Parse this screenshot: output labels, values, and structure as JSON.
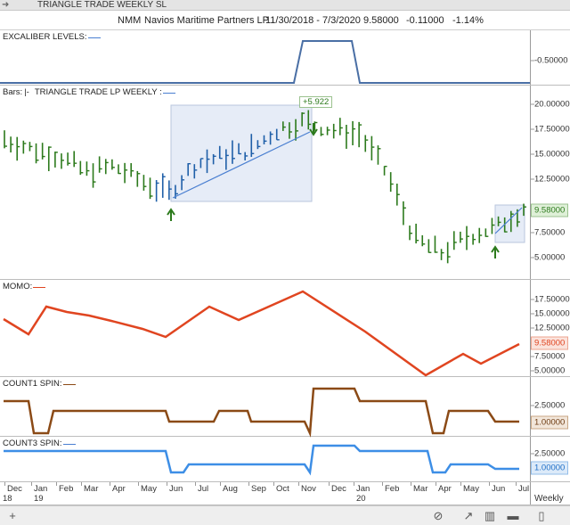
{
  "window": {
    "title": "TRIANGLE TRADE WEEKLY SL",
    "back_icon": "arrow-right-icon"
  },
  "info": {
    "symbol": "NMM",
    "name": "Navios Maritime Partners LP",
    "date_range": "11/30/2018 - 7/3/2020",
    "last": "9.58000",
    "change": "-0.11000",
    "pct_change": "-1.14%"
  },
  "panes": {
    "excaliber": {
      "label": "EXCALIBER LEVELS:",
      "ticks": [
        "-0.50000"
      ],
      "color": "#4a6fa5"
    },
    "bars": {
      "label_prefix": "Bars:",
      "label": "TRIANGLE TRADE LP WEEKLY :",
      "ticks": [
        "20.00000",
        "17.50000",
        "15.00000",
        "12.50000",
        "10.00000",
        "7.50000",
        "5.00000"
      ],
      "last_badge": "9.58000",
      "annotation": "+5.922",
      "colors": {
        "up": "#2c7a1c",
        "down": "#2c7a1c",
        "highlight": "#e9eef8",
        "trend": "#4a7fd1"
      }
    },
    "momo": {
      "label": "MOMO:",
      "ticks": [
        "17.50000",
        "15.00000",
        "12.50000",
        "10.00000",
        "7.50000",
        "5.00000"
      ],
      "last_badge": "9.58000",
      "color": "#e04520"
    },
    "count1": {
      "label": "COUNT1 SPIN:",
      "ticks": [
        "2.50000",
        "1.00000"
      ],
      "last_badge": "1.00000",
      "color": "#8b4a16"
    },
    "count3": {
      "label": "COUNT3 SPIN:",
      "ticks": [
        "2.50000",
        "1.00000"
      ],
      "last_badge": "1.00000",
      "color": "#3d8ee6"
    }
  },
  "time_axis": {
    "months": [
      "Dec",
      "Jan",
      "Feb",
      "Mar",
      "Apr",
      "May",
      "Jun",
      "Jul",
      "Aug",
      "Sep",
      "Oct",
      "Nov",
      "Dec",
      "Jan",
      "Feb",
      "Mar",
      "Apr",
      "May",
      "Jun",
      "Jul"
    ],
    "years": [
      "18",
      "19",
      "20"
    ],
    "period": "Weekly"
  },
  "toolbar": {
    "icons": [
      "add-icon",
      "zoom-icon",
      "line-chart-icon",
      "bar-chart-icon",
      "panel-icon",
      "page-icon"
    ]
  },
  "chart_data": [
    {
      "type": "ohlc",
      "title": "TRIANGLE TRADE LP WEEKLY",
      "ylim": [
        3.5,
        21
      ],
      "x": [
        "2018-12",
        "2019-01",
        "2019-02",
        "2019-03",
        "2019-04",
        "2019-05",
        "2019-06",
        "2019-07",
        "2019-08",
        "2019-09",
        "2019-10",
        "2019-11",
        "2019-12",
        "2020-01",
        "2020-02",
        "2020-03",
        "2020-04",
        "2020-05",
        "2020-06",
        "2020-07"
      ],
      "close": [
        16.5,
        15.5,
        14.8,
        13.2,
        13.8,
        12.3,
        11.0,
        14.0,
        14.8,
        15.4,
        17.5,
        18.3,
        17.4,
        17.0,
        13.0,
        6.5,
        5.0,
        6.8,
        7.6,
        9.58
      ],
      "annotation": "+5.922"
    },
    {
      "type": "line",
      "title": "MOMO",
      "ylim": [
        4.5,
        19
      ],
      "values": [
        13.5,
        11.0,
        16.0,
        14.0,
        13.0,
        11.0,
        10.0,
        15.5,
        13.5,
        16.0,
        18.5,
        16.0,
        11.0,
        6.5,
        5.2,
        8.0,
        6.5,
        9.58
      ],
      "series": [
        {
          "name": "MOMO",
          "values": [
            13.5,
            11.0,
            16.0,
            14.0,
            13.0,
            11.0,
            10.0,
            15.5,
            13.5,
            16.0,
            18.5,
            16.0,
            11.0,
            6.5,
            5.2,
            8.0,
            6.5,
            9.58
          ]
        }
      ]
    },
    {
      "type": "line",
      "title": "COUNT1 SPIN",
      "ylim": [
        0,
        3.5
      ],
      "values": [
        2,
        2,
        0,
        0,
        1,
        1,
        1,
        1,
        1,
        1.5,
        1,
        1,
        0,
        3,
        3,
        2,
        2,
        2,
        0,
        1,
        1,
        1
      ],
      "series": [
        {
          "name": "COUNT1 SPIN",
          "values": [
            2,
            2,
            0,
            0,
            1,
            1,
            1,
            1,
            1,
            1.5,
            1,
            1,
            0,
            3,
            3,
            2,
            2,
            2,
            0,
            1,
            1,
            1
          ]
        }
      ]
    },
    {
      "type": "line",
      "title": "COUNT3 SPIN",
      "ylim": [
        0,
        3.5
      ],
      "values": [
        2,
        2,
        2,
        2,
        2,
        0,
        1,
        1,
        1,
        1,
        0,
        3,
        3,
        2,
        2,
        2,
        0,
        1,
        1,
        1
      ],
      "series": [
        {
          "name": "COUNT3 SPIN",
          "values": [
            2,
            2,
            2,
            2,
            2,
            0,
            1,
            1,
            1,
            1,
            0,
            3,
            3,
            2,
            2,
            2,
            0,
            1,
            1,
            1
          ]
        }
      ]
    }
  ]
}
